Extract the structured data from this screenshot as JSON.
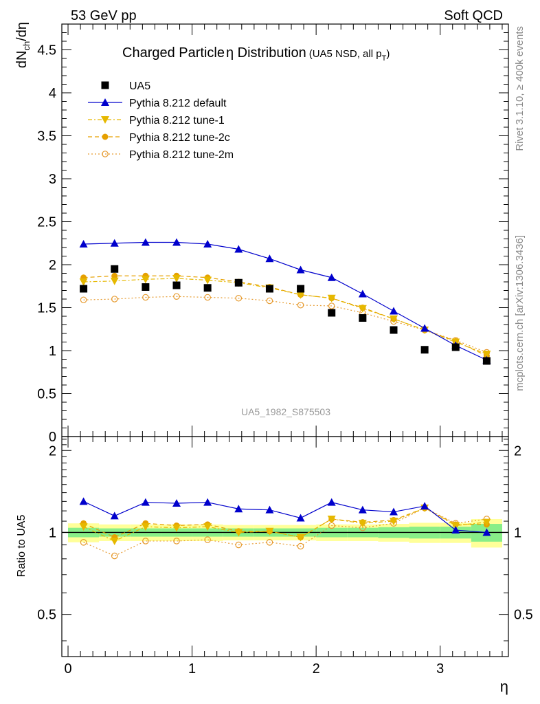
{
  "header": {
    "left": "53 GeV pp",
    "right": "Soft QCD"
  },
  "side_labels": {
    "rivet": "Rivet 3.1.10, ≥ 400k events",
    "mcplots": "mcplots.cern.ch [arXiv:1306.3436]"
  },
  "chart_data": [
    {
      "type": "scatter",
      "title_main": "Charged Particle",
      "title_greek": "η",
      "title_rest": " Distribution",
      "title_sub": "(UA5 NSD, all p",
      "title_sub_idx": "T",
      "title_sub_end": ")",
      "ylabel_main": "dN",
      "ylabel_sub": "ch",
      "ylabel_end": "/dη",
      "watermark": "UA5_1982_S875503",
      "ylim": [
        0,
        4.8
      ],
      "yticks": [
        "0",
        "0.5",
        "1",
        "1.5",
        "2",
        "2.5",
        "3",
        "3.5",
        "4",
        "4.5"
      ],
      "legend_position": "top-left",
      "x": [
        0.125,
        0.375,
        0.625,
        0.875,
        1.125,
        1.375,
        1.625,
        1.875,
        2.125,
        2.375,
        2.625,
        2.875,
        3.125,
        3.375
      ],
      "series": [
        {
          "name": "UA5",
          "color": "#000000",
          "marker": "square",
          "line": "none",
          "values": [
            1.72,
            1.95,
            1.74,
            1.76,
            1.73,
            1.79,
            1.72,
            1.72,
            1.44,
            1.38,
            1.24,
            1.01,
            1.04,
            0.88
          ]
        },
        {
          "name": "Pythia 8.212 default",
          "color": "#0000cc",
          "marker": "triangle-up",
          "line": "solid",
          "values": [
            2.24,
            2.25,
            2.26,
            2.26,
            2.24,
            2.18,
            2.07,
            1.94,
            1.85,
            1.66,
            1.46,
            1.26,
            1.06,
            0.89
          ]
        },
        {
          "name": "Pythia 8.212 tune-1",
          "color": "#e6b800",
          "marker": "triangle-down",
          "line": "dashdot",
          "values": [
            1.8,
            1.81,
            1.83,
            1.84,
            1.82,
            1.79,
            1.73,
            1.65,
            1.61,
            1.49,
            1.37,
            1.24,
            1.1,
            0.96
          ]
        },
        {
          "name": "Pythia 8.212 tune-2c",
          "color": "#e6a000",
          "marker": "circle-filled",
          "line": "dashed",
          "values": [
            1.85,
            1.87,
            1.87,
            1.87,
            1.85,
            1.8,
            1.74,
            1.65,
            1.61,
            1.5,
            1.37,
            1.24,
            1.11,
            0.94
          ]
        },
        {
          "name": "Pythia 8.212 tune-2m",
          "color": "#e69a2e",
          "marker": "circle-open",
          "line": "dotted",
          "values": [
            1.59,
            1.6,
            1.62,
            1.63,
            1.62,
            1.61,
            1.58,
            1.53,
            1.52,
            1.44,
            1.34,
            1.24,
            1.12,
            0.98
          ]
        }
      ]
    },
    {
      "type": "scatter",
      "ylabel": "Ratio to UA5",
      "xlabel": "η",
      "ylim": [
        0.35,
        2.25
      ],
      "xlim": [
        -0.05,
        3.55
      ],
      "yticks": [
        "0.5",
        "1",
        "2"
      ],
      "xticks": [
        "0",
        "1",
        "2",
        "3"
      ],
      "band_colors": {
        "outer": "#ffff99",
        "inner": "#88ee88"
      },
      "band_outer": [
        0.08,
        0.07,
        0.07,
        0.07,
        0.07,
        0.065,
        0.065,
        0.065,
        0.07,
        0.07,
        0.075,
        0.085,
        0.085,
        0.12
      ],
      "band_inner": [
        0.04,
        0.035,
        0.035,
        0.035,
        0.035,
        0.035,
        0.035,
        0.035,
        0.04,
        0.04,
        0.045,
        0.05,
        0.05,
        0.075
      ],
      "series": [
        {
          "name": "Pythia 8.212 default",
          "color": "#0000cc",
          "marker": "triangle-up",
          "line": "solid",
          "values": [
            1.3,
            1.15,
            1.29,
            1.28,
            1.29,
            1.22,
            1.21,
            1.13,
            1.29,
            1.21,
            1.19,
            1.25,
            1.02,
            1.0
          ]
        },
        {
          "name": "Pythia 8.212 tune-1",
          "color": "#e6b800",
          "marker": "triangle-down",
          "line": "dashdot",
          "values": [
            1.05,
            0.93,
            1.05,
            1.04,
            1.05,
            1.0,
            1.01,
            0.96,
            1.12,
            1.08,
            1.1,
            1.23,
            1.06,
            1.09
          ]
        },
        {
          "name": "Pythia 8.212 tune-2c",
          "color": "#e6a000",
          "marker": "circle-filled",
          "line": "dashed",
          "values": [
            1.08,
            0.96,
            1.08,
            1.06,
            1.07,
            1.01,
            1.01,
            0.96,
            1.12,
            1.09,
            1.11,
            1.23,
            1.07,
            1.07
          ]
        },
        {
          "name": "Pythia 8.212 tune-2m",
          "color": "#e69a2e",
          "marker": "circle-open",
          "line": "dotted",
          "values": [
            0.92,
            0.82,
            0.93,
            0.93,
            0.94,
            0.9,
            0.92,
            0.89,
            1.06,
            1.04,
            1.08,
            1.23,
            1.08,
            1.12
          ]
        }
      ]
    }
  ]
}
